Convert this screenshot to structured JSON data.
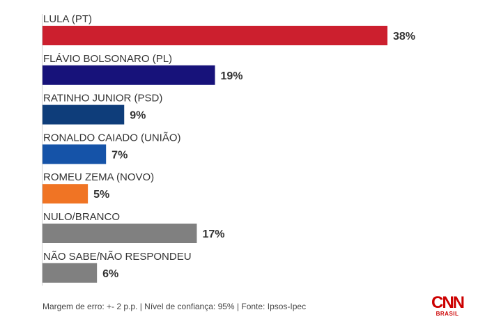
{
  "chart_data": {
    "type": "bar",
    "orientation": "horizontal",
    "categories": [
      "LULA (PT)",
      "FLÁVIO BOLSONARO (PL)",
      "RATINHO JUNIOR (PSD)",
      "RONALDO CAIADO (UNIÃO)",
      "ROMEU ZEMA (NOVO)",
      "NULO/BRANCO",
      "NÃO SABE/NÃO RESPONDEU"
    ],
    "values": [
      38,
      19,
      9,
      7,
      5,
      17,
      6
    ],
    "value_labels": [
      "38%",
      "19%",
      "9%",
      "7%",
      "5%",
      "17%",
      "6%"
    ],
    "colors": [
      "#cc1f2e",
      "#17127a",
      "#0e3d7a",
      "#1553a8",
      "#f07424",
      "#808080",
      "#808080"
    ],
    "xlim": [
      0,
      38
    ],
    "grid": false,
    "title": "",
    "xlabel": "",
    "ylabel": ""
  },
  "footer": {
    "note": "Margem de erro: +- 2 p.p. | Nível de confiança: 95% | Fonte: Ipsos-Ipec"
  },
  "logo": {
    "brand": "CNN",
    "subtitle": "BRASIL",
    "color": "#cc0000"
  }
}
